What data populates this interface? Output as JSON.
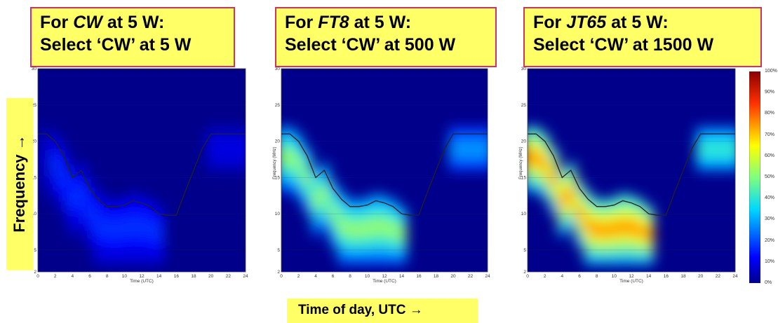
{
  "titles": [
    {
      "prefix": "For ",
      "mode": "CW",
      "suffix": " at 5 W:",
      "line2": "Select ‘CW’ at 5 W"
    },
    {
      "prefix": "For ",
      "mode": "FT8",
      "suffix": " at 5 W:",
      "line2": "Select ‘CW’ at 500 W"
    },
    {
      "prefix": "For ",
      "mode": "JT65",
      "suffix": " at 5 W:",
      "line2": "Select ‘CW’ at 1500 W"
    }
  ],
  "axis_text": {
    "frequency": "Frequency →",
    "time": "Time of day, UTC →"
  },
  "colorbar": {
    "ticks": [
      "100%",
      "90%",
      "80%",
      "70%",
      "60%",
      "50%",
      "40%",
      "30%",
      "20%",
      "10%",
      "0%"
    ]
  },
  "colors": {
    "background": "#00008b",
    "highlight": "#ffff66",
    "border": "#cc3366"
  },
  "chart_data": [
    {
      "type": "heatmap",
      "title": "",
      "xlabel": "Time (UTC)",
      "ylabel": "",
      "xlim": [
        0,
        24
      ],
      "ylim": [
        2,
        30
      ],
      "xticks": [
        "0",
        "2",
        "4",
        "6",
        "8",
        "10",
        "12",
        "14",
        "16",
        "18",
        "20",
        "22",
        "24"
      ],
      "yticks": [
        "2",
        "5",
        "10",
        "15",
        "20",
        "25",
        "30"
      ],
      "peak_level": 0.18,
      "muf_curve": {
        "x": [
          0,
          1,
          2,
          3,
          4,
          5,
          6,
          7,
          8,
          9,
          10,
          11,
          12,
          13,
          14,
          15,
          16,
          17,
          18,
          19,
          20,
          21,
          22,
          23,
          24
        ],
        "y": [
          21,
          21,
          20,
          18,
          15,
          16,
          13.5,
          12,
          11,
          11,
          11.2,
          11.8,
          11.5,
          11,
          10,
          9.8,
          9.8,
          13,
          16,
          19,
          21,
          21,
          21,
          21,
          21
        ]
      }
    },
    {
      "type": "heatmap",
      "title": "",
      "xlabel": "Time (UTC)",
      "ylabel": "Frequency (MHz)",
      "xlim": [
        0,
        24
      ],
      "ylim": [
        2,
        30
      ],
      "xticks": [
        "0",
        "2",
        "4",
        "6",
        "8",
        "10",
        "12",
        "14",
        "16",
        "18",
        "20",
        "22",
        "24"
      ],
      "yticks": [
        "2",
        "5",
        "10",
        "15",
        "20",
        "25",
        "30"
      ],
      "peak_level": 0.55,
      "muf_curve": {
        "x": [
          0,
          1,
          2,
          3,
          4,
          5,
          6,
          7,
          8,
          9,
          10,
          11,
          12,
          13,
          14,
          15,
          16,
          17,
          18,
          19,
          20,
          21,
          22,
          23,
          24
        ],
        "y": [
          21,
          21,
          20,
          18,
          15,
          16,
          13.5,
          12,
          11,
          11,
          11.2,
          11.8,
          11.5,
          11,
          10,
          9.8,
          9.8,
          13,
          16,
          19,
          21,
          21,
          21,
          21,
          21
        ]
      }
    },
    {
      "type": "heatmap",
      "title": "",
      "xlabel": "Time (UTC)",
      "ylabel": "Frequency (MHz)",
      "xlim": [
        0,
        24
      ],
      "ylim": [
        2,
        30
      ],
      "xticks": [
        "0",
        "2",
        "4",
        "6",
        "8",
        "10",
        "12",
        "14",
        "16",
        "18",
        "20",
        "22",
        "24"
      ],
      "yticks": [
        "2",
        "5",
        "10",
        "15",
        "20",
        "25",
        "30"
      ],
      "peak_level": 0.8,
      "muf_curve": {
        "x": [
          0,
          1,
          2,
          3,
          4,
          5,
          6,
          7,
          8,
          9,
          10,
          11,
          12,
          13,
          14,
          15,
          16,
          17,
          18,
          19,
          20,
          21,
          22,
          23,
          24
        ],
        "y": [
          21,
          21,
          20,
          18,
          15,
          16,
          13.5,
          12,
          11,
          11,
          11.2,
          11.8,
          11.5,
          11,
          10,
          9.8,
          9.8,
          13,
          16,
          19,
          21,
          21,
          21,
          21,
          21
        ]
      }
    }
  ]
}
